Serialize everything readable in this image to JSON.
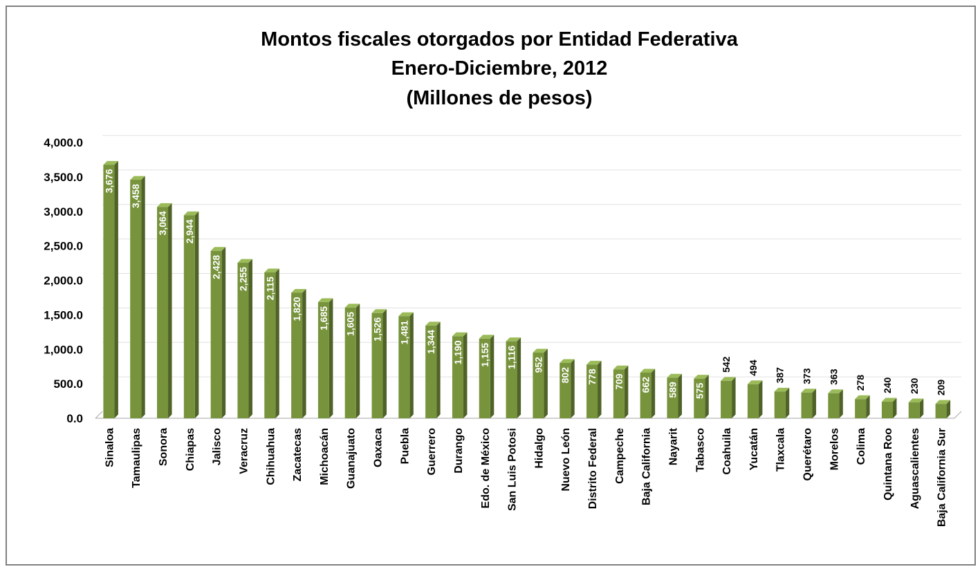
{
  "chart_data": {
    "type": "bar",
    "title": "Montos fiscales otorgados por Entidad Federativa",
    "subtitle": "Enero-Diciembre, 2012",
    "unit_line": "(Millones de pesos)",
    "categories": [
      "Sinaloa",
      "Tamaulipas",
      "Sonora",
      "Chiapas",
      "Jalisco",
      "Veracruz",
      "Chihuahua",
      "Zacatecas",
      "Michoacán",
      "Guanajuato",
      "Oaxaca",
      "Puebla",
      "Guerrero",
      "Durango",
      "Edo. de México",
      "San Luis Potosi",
      "Hidalgo",
      "Nuevo León",
      "Distrito Federal",
      "Campeche",
      "Baja California",
      "Nayarit",
      "Tabasco",
      "Coahuila",
      "Yucatán",
      "Tlaxcala",
      "Querétaro",
      "Morelos",
      "Colima",
      "Quintana Roo",
      "Aguascalientes",
      "Baja California Sur"
    ],
    "values": [
      3676,
      3458,
      3064,
      2944,
      2428,
      2255,
      2115,
      1820,
      1685,
      1605,
      1526,
      1481,
      1344,
      1190,
      1155,
      1116,
      952,
      802,
      778,
      709,
      662,
      589,
      575,
      542,
      494,
      387,
      373,
      363,
      278,
      240,
      230,
      209
    ],
    "value_labels": [
      "3,676",
      "3,458",
      "3,064",
      "2,944",
      "2,428",
      "2,255",
      "2,115",
      "1,820",
      "1,685",
      "1,605",
      "1,526",
      "1,481",
      "1,344",
      "1,190",
      "1,155",
      "1,116",
      "952",
      "802",
      "778",
      "709",
      "662",
      "589",
      "575",
      "542",
      "494",
      "387",
      "373",
      "363",
      "278",
      "240",
      "230",
      "209"
    ],
    "y_ticks": [
      "0.0",
      "500.0",
      "1,000.0",
      "1,500.0",
      "2,000.0",
      "2,500.0",
      "3,000.0",
      "3,500.0",
      "4,000.0"
    ],
    "ylim": [
      0,
      4000
    ],
    "y_step": 500,
    "grid": true,
    "legend": "none",
    "colors": {
      "bar_front": "#77933c",
      "bar_side": "#4f6228",
      "bar_top": "#9bbb59",
      "gridline": "#e0e0e0",
      "axis": "#a6a6a6",
      "frame": "#7f7f7f"
    }
  }
}
